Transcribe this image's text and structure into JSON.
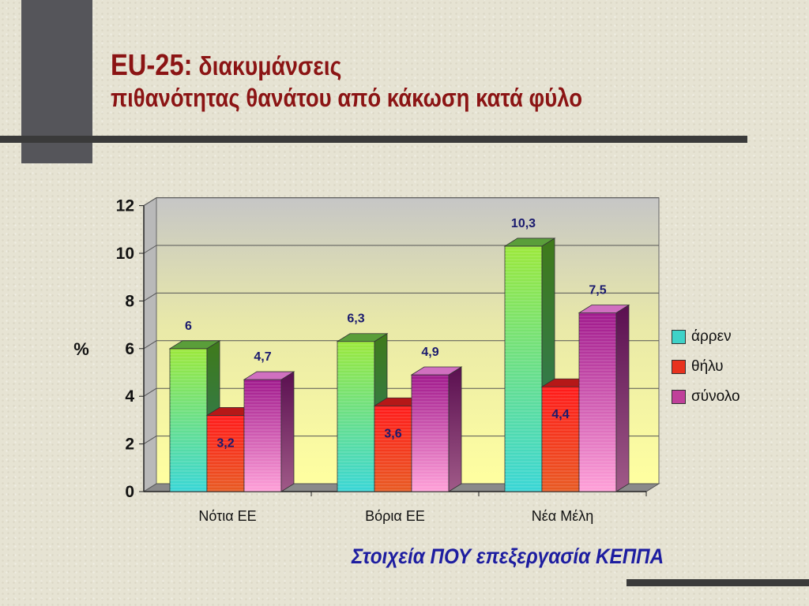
{
  "title_line1_a": "EU-25:",
  "title_line1_b": " διακυμάνσεις",
  "title_line2": "πιθανότητας θανάτου από κάκωση κατά φύλο",
  "source": "Στοιχεία ΠΟΥ επεξεργασία ΚΕΠΠΑ",
  "colors": {
    "male": "#3fd2c8",
    "female": "#e8321e",
    "total": "#c0409a"
  },
  "chart_data": {
    "type": "bar",
    "categories": [
      "Νότια ΕΕ",
      "Βόρια ΕΕ",
      "Νέα Μέλη"
    ],
    "series": [
      {
        "name": "άρρεν",
        "values": [
          6,
          6.3,
          10.3
        ],
        "labels": [
          "6",
          "6,3",
          "10,3"
        ]
      },
      {
        "name": "θήλυ",
        "values": [
          3.2,
          3.6,
          4.4
        ],
        "labels": [
          "3,2",
          "3,6",
          "4,4"
        ]
      },
      {
        "name": "σύνολο",
        "values": [
          4.7,
          4.9,
          7.5
        ],
        "labels": [
          "4,7",
          "4,9",
          "7,5"
        ]
      }
    ],
    "ylabel": "%",
    "ylim": [
      0,
      12
    ],
    "yticks": [
      0,
      2,
      4,
      6,
      8,
      10,
      12
    ],
    "grid": true,
    "legend": "right"
  }
}
